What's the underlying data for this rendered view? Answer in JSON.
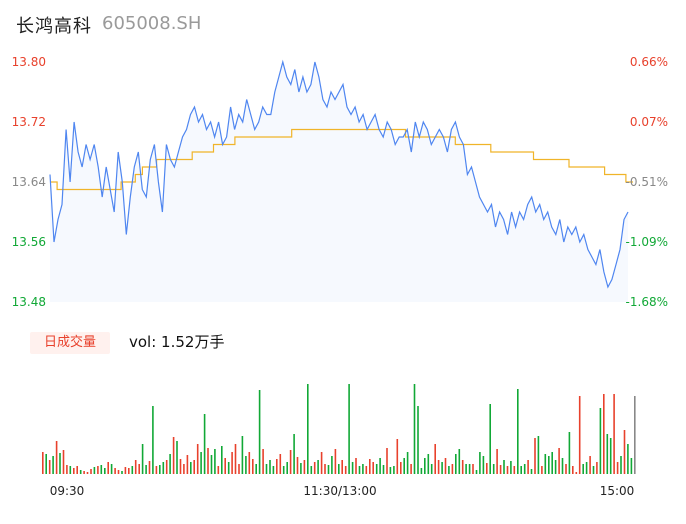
{
  "header": {
    "name": "长鸿高科",
    "code": "605008.SH"
  },
  "volume_panel": {
    "badge": "日成交量",
    "vol_label": "vol: 1.52万手"
  },
  "colors": {
    "up": "#e8412c",
    "down": "#11a836",
    "neutral": "#888888",
    "price_line": "#4f86f0",
    "avg_line": "#f0b429",
    "area": "#f6f9fe"
  },
  "chart_data": [
    {
      "type": "line",
      "title": "",
      "x_ticks": [
        "09:30",
        "11:30/13:00",
        "15:00"
      ],
      "y_ticks": [
        "13.80",
        "13.72",
        "13.64",
        "13.56",
        "13.48"
      ],
      "y_ticks_right": [
        "0.66%",
        "0.07%",
        "-0.51%",
        "-1.09%",
        "-1.68%"
      ],
      "ylim": [
        13.48,
        13.8
      ],
      "reference_price": 13.71,
      "series": [
        {
          "values": [
            13.65,
            13.56,
            13.59,
            13.61,
            13.71,
            13.64,
            13.72,
            13.68,
            13.66,
            13.69,
            13.67,
            13.69,
            13.66,
            13.62,
            13.66,
            13.63,
            13.6,
            13.68,
            13.64,
            13.57,
            13.62,
            13.66,
            13.68,
            13.63,
            13.62,
            13.67,
            13.69,
            13.64,
            13.6,
            13.69,
            13.67,
            13.66,
            13.68,
            13.7,
            13.71,
            13.73,
            13.74,
            13.72,
            13.73,
            13.71,
            13.72,
            13.7,
            13.72,
            13.69,
            13.7,
            13.74,
            13.71,
            13.73,
            13.72,
            13.75,
            13.73,
            13.71,
            13.72,
            13.74,
            13.73,
            13.73,
            13.76,
            13.78,
            13.8,
            13.78,
            13.77,
            13.79,
            13.76,
            13.78,
            13.76,
            13.77,
            13.8,
            13.78,
            13.75,
            13.74,
            13.76,
            13.75,
            13.76,
            13.77,
            13.74,
            13.73,
            13.74,
            13.72,
            13.73,
            13.71,
            13.72,
            13.73,
            13.71,
            13.7,
            13.72,
            13.71,
            13.69,
            13.7,
            13.7,
            13.71,
            13.68,
            13.72,
            13.7,
            13.72,
            13.71,
            13.69,
            13.7,
            13.71,
            13.7,
            13.68,
            13.71,
            13.72,
            13.7,
            13.69,
            13.65,
            13.66,
            13.64,
            13.62,
            13.61,
            13.6,
            13.61,
            13.58,
            13.6,
            13.59,
            13.57,
            13.6,
            13.58,
            13.6,
            13.59,
            13.61,
            13.62,
            13.6,
            13.61,
            13.59,
            13.6,
            13.58,
            13.57,
            13.59,
            13.56,
            13.58,
            13.57,
            13.58,
            13.56,
            13.57,
            13.55,
            13.54,
            13.53,
            13.55,
            13.52,
            13.5,
            13.51,
            13.53,
            13.55,
            13.59,
            13.6
          ]
        },
        {
          "values": [
            13.64,
            13.63,
            13.63,
            13.63,
            13.63,
            13.63,
            13.63,
            13.63,
            13.63,
            13.63,
            13.64,
            13.64,
            13.65,
            13.66,
            13.66,
            13.67,
            13.67,
            13.67,
            13.67,
            13.67,
            13.68,
            13.68,
            13.68,
            13.69,
            13.69,
            13.69,
            13.7,
            13.7,
            13.7,
            13.7,
            13.7,
            13.7,
            13.7,
            13.7,
            13.71,
            13.71,
            13.71,
            13.71,
            13.71,
            13.71,
            13.71,
            13.71,
            13.71,
            13.71,
            13.71,
            13.71,
            13.71,
            13.71,
            13.71,
            13.71,
            13.7,
            13.7,
            13.7,
            13.7,
            13.7,
            13.7,
            13.7,
            13.69,
            13.69,
            13.69,
            13.69,
            13.69,
            13.68,
            13.68,
            13.68,
            13.68,
            13.68,
            13.68,
            13.67,
            13.67,
            13.67,
            13.67,
            13.67,
            13.66,
            13.66,
            13.66,
            13.66,
            13.66,
            13.65,
            13.65,
            13.65,
            13.64,
            13.64
          ]
        }
      ]
    },
    {
      "type": "bar",
      "title": "",
      "values": [
        22,
        20,
        14,
        18,
        33,
        21,
        24,
        9,
        8,
        6,
        8,
        4,
        3,
        2,
        5,
        7,
        8,
        9,
        6,
        12,
        10,
        6,
        4,
        3,
        7,
        6,
        8,
        14,
        10,
        30,
        9,
        13,
        68,
        8,
        9,
        12,
        14,
        20,
        37,
        33,
        15,
        10,
        19,
        12,
        14,
        30,
        22,
        60,
        26,
        19,
        25,
        8,
        28,
        16,
        12,
        22,
        30,
        10,
        38,
        18,
        22,
        15,
        10,
        84,
        25,
        10,
        14,
        8,
        15,
        20,
        8,
        12,
        24,
        40,
        17,
        11,
        14,
        90,
        8,
        12,
        14,
        22,
        10,
        9,
        18,
        25,
        10,
        14,
        8,
        90,
        12,
        16,
        8,
        10,
        8,
        15,
        12,
        10,
        16,
        9,
        26,
        7,
        8,
        35,
        12,
        16,
        22,
        10,
        90,
        68,
        6,
        16,
        20,
        10,
        30,
        14,
        12,
        16,
        8,
        10,
        20,
        25,
        14,
        10,
        10,
        10,
        4,
        22,
        18,
        11,
        70,
        10,
        25,
        9,
        14,
        8,
        13,
        8,
        85,
        8,
        10,
        14,
        5,
        36,
        38,
        8,
        20,
        18,
        22,
        14,
        26,
        16,
        10,
        42,
        8,
        2,
        78,
        10,
        12,
        18,
        8,
        12,
        66,
        80,
        40,
        36,
        80,
        12,
        18,
        44,
        30,
        16,
        78
      ],
      "colors": [
        "up",
        "down",
        "up",
        "down",
        "up",
        "down",
        "up",
        "up",
        "down",
        "up",
        "up",
        "down",
        "up",
        "up",
        "up",
        "down",
        "up",
        "down",
        "down",
        "up",
        "down",
        "up",
        "up",
        "down",
        "up",
        "up",
        "down",
        "up",
        "up",
        "down",
        "down",
        "up",
        "down",
        "up",
        "down",
        "down",
        "up",
        "down",
        "up",
        "down",
        "up",
        "up",
        "up",
        "down",
        "up",
        "up",
        "down",
        "down",
        "up",
        "down",
        "down",
        "up",
        "down",
        "up",
        "down",
        "up",
        "up",
        "up",
        "down",
        "down",
        "up",
        "up",
        "down",
        "down",
        "up",
        "down",
        "down",
        "down",
        "up",
        "up",
        "down",
        "down",
        "up",
        "down",
        "up",
        "down",
        "up",
        "down",
        "down",
        "up",
        "down",
        "up",
        "up",
        "down",
        "down",
        "up",
        "down",
        "up",
        "up",
        "down",
        "down",
        "up",
        "down",
        "down",
        "up",
        "up",
        "up",
        "down",
        "down",
        "down",
        "up",
        "down",
        "down",
        "up",
        "up",
        "down",
        "down",
        "up",
        "down",
        "down",
        "down",
        "down",
        "down",
        "down",
        "up",
        "up",
        "down",
        "up",
        "down",
        "up",
        "down",
        "down",
        "up",
        "down",
        "down",
        "up",
        "down",
        "down",
        "down",
        "up",
        "down",
        "down",
        "up",
        "up",
        "down",
        "up",
        "down",
        "up",
        "down",
        "down",
        "down",
        "up",
        "down",
        "up",
        "down",
        "up",
        "down",
        "down",
        "down",
        "down",
        "up",
        "down",
        "up",
        "down",
        "up",
        "up",
        "up",
        "down",
        "down",
        "up",
        "down",
        "up",
        "down",
        "up",
        "down",
        "down",
        "up",
        "up",
        "down",
        "up",
        "down",
        "down",
        "neutral"
      ]
    }
  ]
}
